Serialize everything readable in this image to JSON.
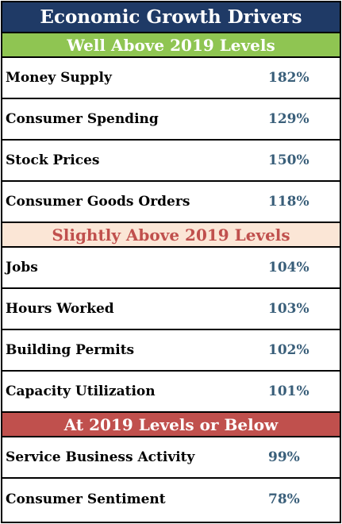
{
  "title": "Economic Growth Drivers",
  "sections": [
    {
      "header": "Well Above 2019 Levels",
      "rows": [
        {
          "label": "Money Supply",
          "value": "182%"
        },
        {
          "label": "Consumer Spending",
          "value": "129%"
        },
        {
          "label": "Stock Prices",
          "value": "150%"
        },
        {
          "label": "Consumer Goods Orders",
          "value": "118%"
        }
      ]
    },
    {
      "header": "Slightly Above 2019 Levels",
      "rows": [
        {
          "label": "Jobs",
          "value": "104%"
        },
        {
          "label": "Hours Worked",
          "value": "103%"
        },
        {
          "label": "Building Permits",
          "value": "102%"
        },
        {
          "label": "Capacity Utilization",
          "value": "101%"
        }
      ]
    },
    {
      "header": "At 2019 Levels or Below",
      "rows": [
        {
          "label": "Service Business Activity",
          "value": "99%"
        },
        {
          "label": "Consumer Sentiment",
          "value": "78%"
        }
      ]
    }
  ],
  "colors": {
    "title_bg": "#1f3a66",
    "section1_bg": "#8fc552",
    "section2_bg": "#fbe6d6",
    "section2_text": "#c0504d",
    "section3_bg": "#c0504d",
    "value_text": "#3a5f7a"
  }
}
